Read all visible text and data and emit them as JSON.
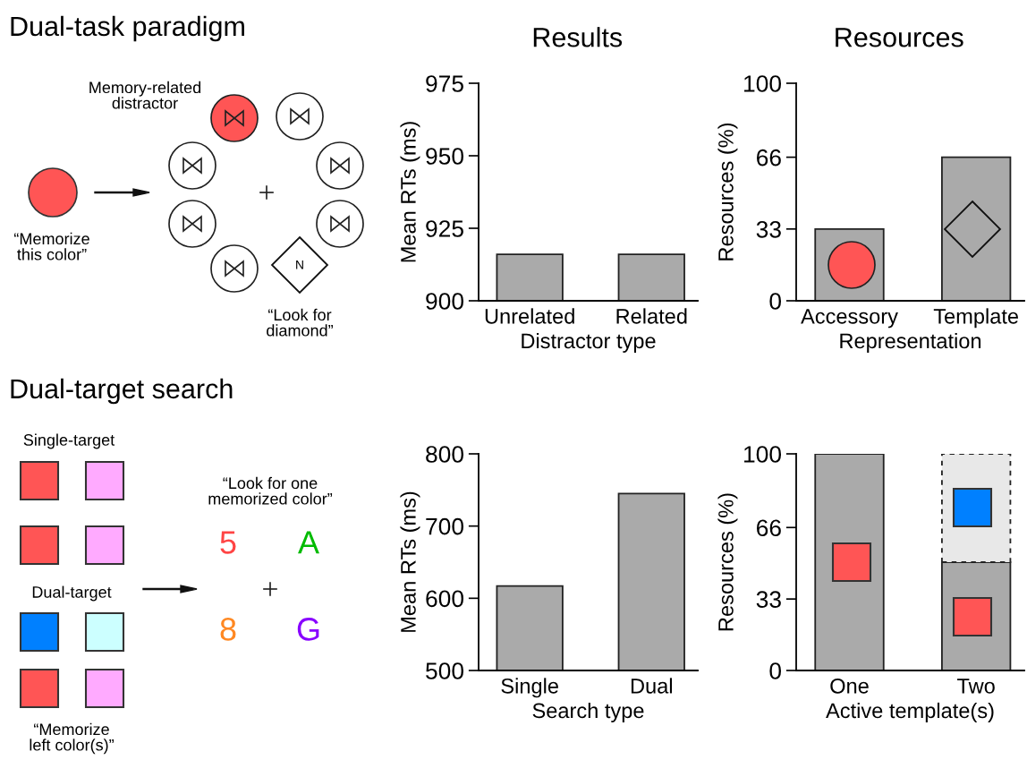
{
  "chart_data": [
    {
      "type": "other",
      "title": "Dual-task paradigm",
      "annotations": [
        "Memory-related\ndistractor",
        "“Memorize\nthis color”",
        "N",
        "“Look for\ndiamond”"
      ]
    },
    {
      "type": "bar",
      "title": "Results",
      "xlabel": "Distractor type",
      "ylabel": "Mean RTs (ms)",
      "categories": [
        "Unrelated",
        "Related"
      ],
      "values": [
        916,
        916
      ],
      "color": "#aaaaaa",
      "ylim": [
        900,
        975
      ],
      "yticks": [
        900,
        925,
        950,
        975
      ],
      "grid": false
    },
    {
      "type": "bar",
      "title": "Resources",
      "xlabel": "Representation",
      "ylabel": "Resources (%)",
      "categories": [
        "Accessory",
        "Template"
      ],
      "values": [
        33,
        66
      ],
      "color": "#aaaaaa",
      "ylim": [
        0,
        100
      ],
      "yticks": [
        0,
        33,
        66,
        100
      ],
      "grid": false
    },
    {
      "type": "other",
      "title": "Dual-target search",
      "annotations": [
        "Single-target",
        "Dual-target",
        "“Memorize\nleft color(s)”",
        "“Look for one\nmemorized color”",
        "5",
        "A",
        "8",
        "G"
      ]
    },
    {
      "type": "bar",
      "xlabel": "Search type",
      "ylabel": "Mean RTs (ms)",
      "categories": [
        "Single",
        "Dual"
      ],
      "values": [
        617,
        745
      ],
      "color": "#aaaaaa",
      "ylim": [
        500,
        800
      ],
      "yticks": [
        500,
        600,
        700,
        800
      ],
      "grid": false
    },
    {
      "type": "bar",
      "stacked": true,
      "xlabel": "Active template(s)",
      "ylabel": "Resources (%)",
      "categories": [
        "One",
        "Two"
      ],
      "series": [
        {
          "color": "#aaaaaa",
          "values": [
            100,
            50
          ]
        },
        {
          "color": "#e8e8e8",
          "values": [
            null,
            50
          ],
          "line_style": "dashed"
        }
      ],
      "ylim": [
        0,
        100
      ],
      "yticks": [
        0,
        33,
        66,
        100
      ],
      "grid": false
    }
  ]
}
